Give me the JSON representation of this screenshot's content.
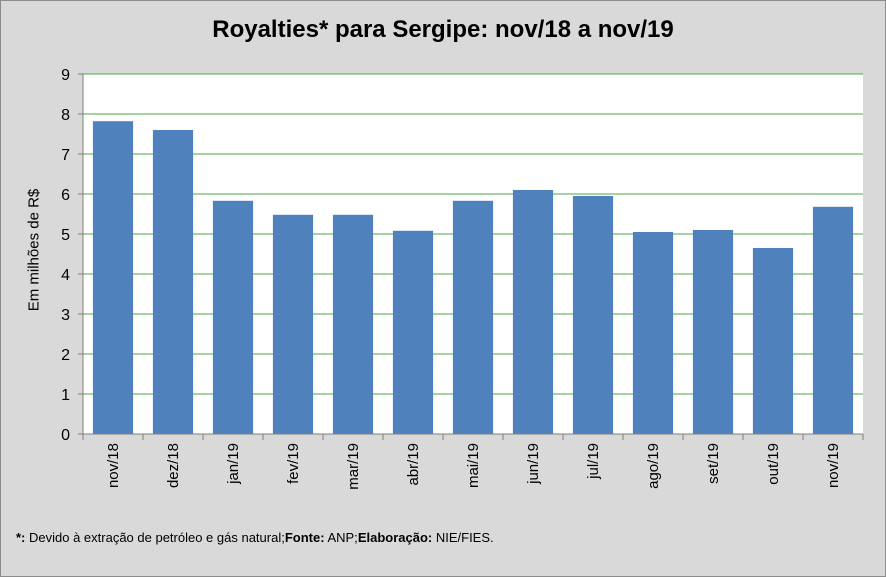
{
  "chart_data": {
    "type": "bar",
    "title": "Royalties* para Sergipe: nov/18 a nov/19",
    "xlabel": "",
    "ylabel": "Em milhões de R$",
    "ylim": [
      0,
      9
    ],
    "yticks": [
      0,
      1,
      2,
      3,
      4,
      5,
      6,
      7,
      8,
      9
    ],
    "categories": [
      "nov/18",
      "dez/18",
      "jan/19",
      "fev/19",
      "mar/19",
      "abr/19",
      "mai/19",
      "jun/19",
      "jul/19",
      "ago/19",
      "set/19",
      "out/19",
      "nov/19"
    ],
    "values": [
      7.82,
      7.6,
      5.83,
      5.48,
      5.48,
      5.08,
      5.83,
      6.1,
      5.95,
      5.05,
      5.1,
      4.65,
      5.68
    ],
    "grid": true,
    "legend": "none",
    "colors": {
      "bar": "#4f81bd",
      "grid": "#4aa84a",
      "plot_bg": "#ffffff",
      "outer_bg": "#d9d9d9"
    }
  },
  "footnote": {
    "marker": "*:",
    "note": " Devido à extração de petróleo e gás natural;",
    "source_label": "Fonte:",
    "source": " ANP;",
    "credit_label": "Elaboração:",
    "credit": " NIE/FIES."
  }
}
